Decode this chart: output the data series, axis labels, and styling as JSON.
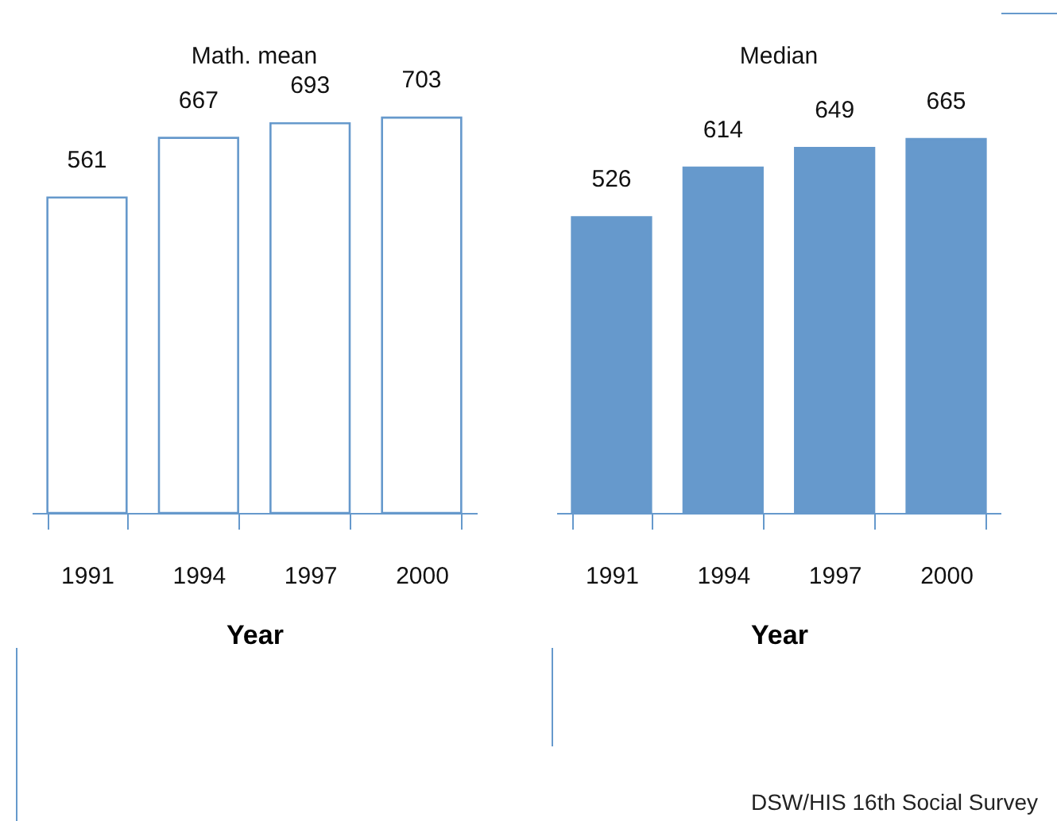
{
  "chart_data": [
    {
      "type": "bar",
      "title": "Math. mean",
      "xlabel": "Year",
      "categories": [
        "1991",
        "1994",
        "1997",
        "2000"
      ],
      "values": [
        561,
        667,
        693,
        703
      ],
      "color": "#ffffff",
      "data_labels": true,
      "tick_labels": "x",
      "grid": false
    },
    {
      "type": "bar",
      "title": "Median",
      "xlabel": "Year",
      "categories": [
        "1991",
        "1994",
        "1997",
        "2000"
      ],
      "values": [
        526,
        614,
        649,
        665
      ],
      "color": "#6699cc",
      "data_labels": true,
      "tick_labels": "x",
      "grid": false,
      "annotations": [
        "DSW/HIS 16th Social Survey"
      ]
    }
  ]
}
